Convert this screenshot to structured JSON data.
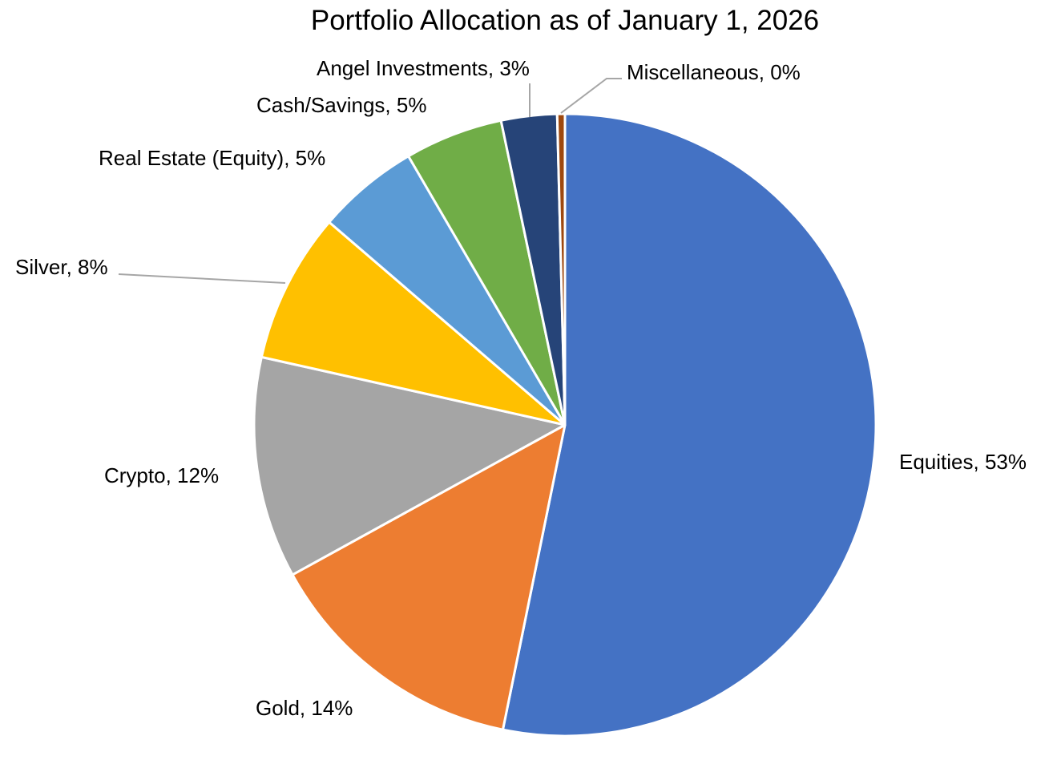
{
  "chart_data": {
    "type": "pie",
    "title": "Portfolio Allocation as of January 1, 2026",
    "start_angle_deg": 0,
    "direction": "clockwise",
    "slices": [
      {
        "name": "Equities",
        "value": 53.2,
        "label": "Equities, 53%",
        "color": "#4472C4"
      },
      {
        "name": "Gold",
        "value": 13.8,
        "label": "Gold, 14%",
        "color": "#ED7D31"
      },
      {
        "name": "Crypto",
        "value": 11.5,
        "label": "Crypto, 12%",
        "color": "#A5A5A5"
      },
      {
        "name": "Silver",
        "value": 7.8,
        "label": "Silver, 8%",
        "color": "#FFC000"
      },
      {
        "name": "Real Estate (Equity)",
        "value": 5.3,
        "label": "Real Estate (Equity), 5%",
        "color": "#5B9BD5"
      },
      {
        "name": "Cash/Savings",
        "value": 5.1,
        "label": "Cash/Savings, 5%",
        "color": "#70AD47"
      },
      {
        "name": "Angel Investments",
        "value": 2.9,
        "label": "Angel Investments, 3%",
        "color": "#264478"
      },
      {
        "name": "Miscellaneous",
        "value": 0.4,
        "label": "Miscellaneous, 0%",
        "color": "#9E480E"
      }
    ],
    "data_labels": "category name and percentage",
    "legend": "none"
  }
}
